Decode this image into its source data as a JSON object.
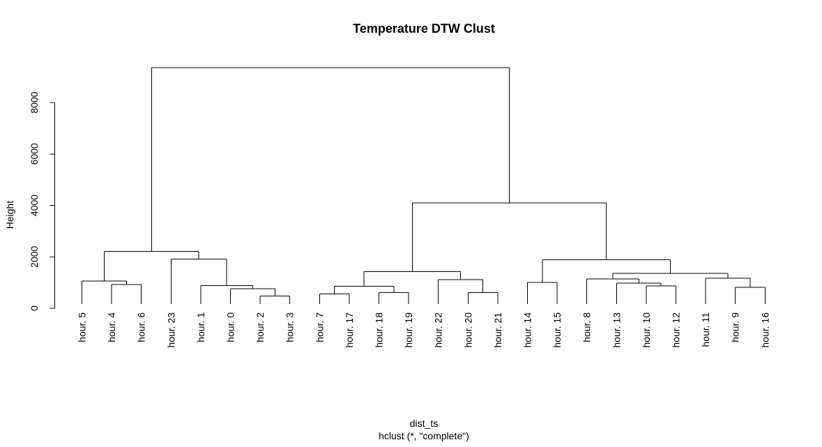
{
  "chart_data": {
    "type": "dendrogram",
    "title": "Temperature DTW Clust",
    "xlabel": "dist_ts",
    "subtitle": "hclust (*, \"complete\")",
    "ylabel": "Height",
    "yticks": [
      0,
      2000,
      4000,
      6000,
      8000
    ],
    "ylim": [
      0,
      9400
    ],
    "grid": false,
    "leaf_order": [
      "hour. 5",
      "hour. 4",
      "hour. 6",
      "hour. 23",
      "hour. 1",
      "hour. 0",
      "hour. 2",
      "hour. 3",
      "hour. 7",
      "hour. 17",
      "hour. 18",
      "hour. 19",
      "hour. 22",
      "hour. 20",
      "hour. 21",
      "hour. 14",
      "hour. 15",
      "hour. 8",
      "hour. 13",
      "hour. 10",
      "hour. 12",
      "hour. 11",
      "hour. 9",
      "hour. 16"
    ],
    "merges": [
      {
        "left": "hour. 4",
        "right": "hour. 6",
        "height": 920
      },
      {
        "left": "hour. 5",
        "right": "hour. 4 + hour. 6",
        "height": 1060
      },
      {
        "left": "hour. 2",
        "right": "hour. 3",
        "height": 470
      },
      {
        "left": "hour. 0",
        "right": "hour. 2 + hour. 3",
        "height": 760
      },
      {
        "left": "hour. 1",
        "right": "hour. 0 + hour. 2 + hour. 3",
        "height": 880
      },
      {
        "left": "hour. 23",
        "right": "hour. 1 + hour. 0 + hour. 2 + hour. 3",
        "height": 1910
      },
      {
        "left": "hour. 5 + hour. 4 + hour. 6",
        "right": "hour. 23 + hour. 1 + hour. 0 + hour. 2 + hour. 3",
        "height": 2210
      },
      {
        "left": "hour. 7",
        "right": "hour. 17",
        "height": 560
      },
      {
        "left": "hour. 18",
        "right": "hour. 19",
        "height": 610
      },
      {
        "left": "hour. 7 + hour. 17",
        "right": "hour. 18 + hour. 19",
        "height": 850
      },
      {
        "left": "hour. 20",
        "right": "hour. 21",
        "height": 610
      },
      {
        "left": "hour. 22",
        "right": "hour. 20 + hour. 21",
        "height": 1110
      },
      {
        "left": "hour. 7 + hour. 17 + hour. 18 + hour. 19",
        "right": "hour. 22 + hour. 20 + hour. 21",
        "height": 1430
      },
      {
        "left": "hour. 14",
        "right": "hour. 15",
        "height": 1000
      },
      {
        "left": "hour. 10",
        "right": "hour. 12",
        "height": 870
      },
      {
        "left": "hour. 13",
        "right": "hour. 10 + hour. 12",
        "height": 980
      },
      {
        "left": "hour. 8",
        "right": "hour. 13 + hour. 10 + hour. 12",
        "height": 1140
      },
      {
        "left": "hour. 9",
        "right": "hour. 16",
        "height": 820
      },
      {
        "left": "hour. 11",
        "right": "hour. 9 + hour. 16",
        "height": 1160
      },
      {
        "left": "hour. 8 + hour. 13 + hour. 10 + hour. 12",
        "right": "hour. 11 + hour. 9 + hour. 16",
        "height": 1360
      },
      {
        "left": "hour. 14 + hour. 15",
        "right": "hour. 8 + hour. 13 + hour. 10 + hour. 12 + hour. 11 + hour. 9 + hour. 16",
        "height": 1880
      },
      {
        "left": "hour. 7 + hour. 17 + hour. 18 + hour. 19 + hour. 22 + hour. 20 + hour. 21",
        "right": "hour. 14 + hour. 15 + hour. 8 + hour. 13 + hour. 10 + hour. 12 + hour. 11 + hour. 9 + hour. 16",
        "height": 4100
      },
      {
        "left": "hour. 5 + hour. 4 + hour. 6 + hour. 23 + hour. 1 + hour. 0 + hour. 2 + hour. 3",
        "right": "hour. 7 + hour. 17 + hour. 18 + hour. 19 + hour. 22 + hour. 20 + hour. 21 + hour. 14 + hour. 15 + hour. 8 + hour. 13 + hour. 10 + hour. 12 + hour. 11 + hour. 9 + hour. 16",
        "height": 9350
      }
    ]
  }
}
